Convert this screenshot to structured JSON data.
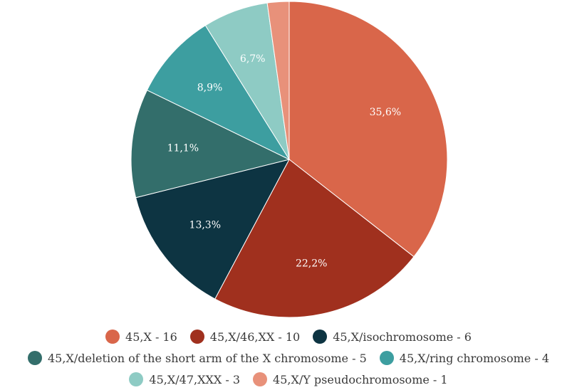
{
  "chart_data": {
    "type": "pie",
    "title": "",
    "slices": [
      {
        "label": "45,X - 16",
        "value": 16,
        "percent_label": "35,6%",
        "color": "#d9664a"
      },
      {
        "label": "45,X/46,XX - 10",
        "value": 10,
        "percent_label": "22,2%",
        "color": "#a0301e"
      },
      {
        "label": "45,X/isochromosome - 6",
        "value": 6,
        "percent_label": "13,3%",
        "color": "#0d3442"
      },
      {
        "label": "45,X/deletion of the short arm of the X chromosome - 5",
        "value": 5,
        "percent_label": "11,1%",
        "color": "#336e6b"
      },
      {
        "label": "45,X/ring chromosome - 4",
        "value": 4,
        "percent_label": "8,9%",
        "color": "#3d9ea0"
      },
      {
        "label": "45,X/47,XXX - 3",
        "value": 3,
        "percent_label": "6,7%",
        "color": "#8ecbc4"
      },
      {
        "label": "45,X/Y pseudochromosome - 1",
        "value": 1,
        "percent_label": "",
        "color": "#e8917a"
      }
    ],
    "start_angle_deg": 0,
    "direction": "clockwise",
    "legend_position": "bottom"
  }
}
